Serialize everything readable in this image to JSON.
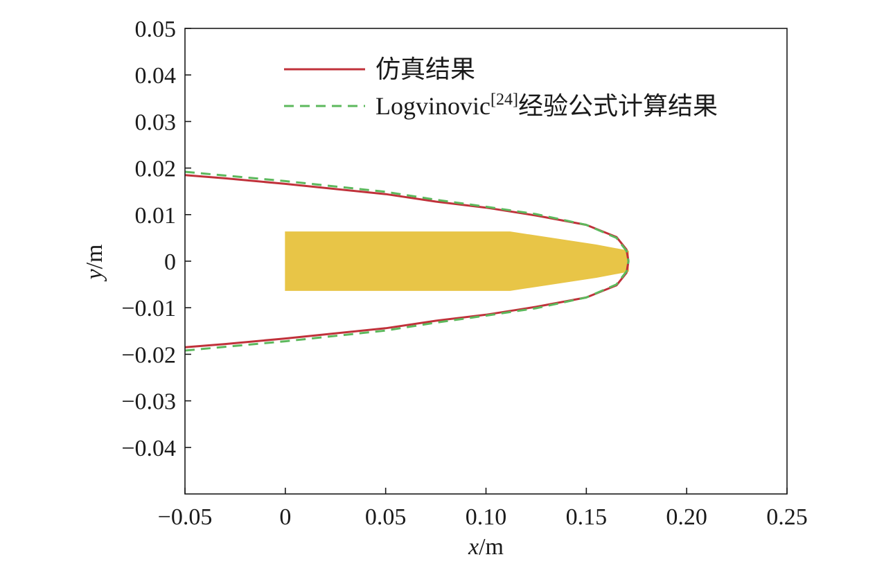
{
  "chart_data": {
    "type": "line",
    "xlabel": {
      "var": "x",
      "unit": "/m"
    },
    "ylabel": {
      "var": "y",
      "unit": "/m"
    },
    "xlim": [
      -0.05,
      0.25
    ],
    "ylim": [
      -0.05,
      0.05
    ],
    "xticks": [
      -0.05,
      0,
      0.05,
      0.1,
      0.15,
      0.2,
      0.25
    ],
    "xtick_labels": [
      "−0.05",
      "0",
      "0.05",
      "0.10",
      "0.15",
      "0.20",
      "0.25"
    ],
    "yticks": [
      0.05,
      0.04,
      0.03,
      0.02,
      0.01,
      0,
      -0.01,
      -0.02,
      -0.03,
      -0.04
    ],
    "ytick_labels": [
      "0.05",
      "0.04",
      "0.03",
      "0.02",
      "0.01",
      "0",
      "−0.01",
      "−0.02",
      "−0.03",
      "−0.04"
    ],
    "grid": false,
    "legend_position": "top-center",
    "series": [
      {
        "name": "仿真结果",
        "style": "solid",
        "color": "#c0313a",
        "points": [
          [
            0.171,
            0.0
          ],
          [
            0.17,
            0.0025
          ],
          [
            0.165,
            0.0052
          ],
          [
            0.15,
            0.0078
          ],
          [
            0.125,
            0.0098
          ],
          [
            0.1,
            0.0115
          ],
          [
            0.075,
            0.0128
          ],
          [
            0.05,
            0.0144
          ],
          [
            0.0,
            0.0166
          ],
          [
            -0.03,
            0.0178
          ],
          [
            -0.05,
            0.0185
          ]
        ]
      },
      {
        "name": "Logvinovic",
        "name_superscript": "[24]",
        "name_suffix": "经验公式计算结果",
        "style": "dashed",
        "color": "#5cb85c",
        "points": [
          [
            0.171,
            0.0
          ],
          [
            0.17,
            0.0022
          ],
          [
            0.165,
            0.005
          ],
          [
            0.15,
            0.0078
          ],
          [
            0.125,
            0.0101
          ],
          [
            0.1,
            0.0117
          ],
          [
            0.075,
            0.0132
          ],
          [
            0.05,
            0.0149
          ],
          [
            0.0,
            0.0172
          ],
          [
            -0.03,
            0.0184
          ],
          [
            -0.05,
            0.0192
          ]
        ]
      }
    ],
    "body_shape": {
      "color": "#e8c547",
      "outline": [
        [
          0.0,
          0.0063
        ],
        [
          0.112,
          0.0063
        ],
        [
          0.155,
          0.0035
        ],
        [
          0.171,
          0.0022
        ],
        [
          0.171,
          -0.0022
        ],
        [
          0.155,
          -0.0035
        ],
        [
          0.112,
          -0.0063
        ],
        [
          0.0,
          -0.0063
        ]
      ]
    }
  }
}
